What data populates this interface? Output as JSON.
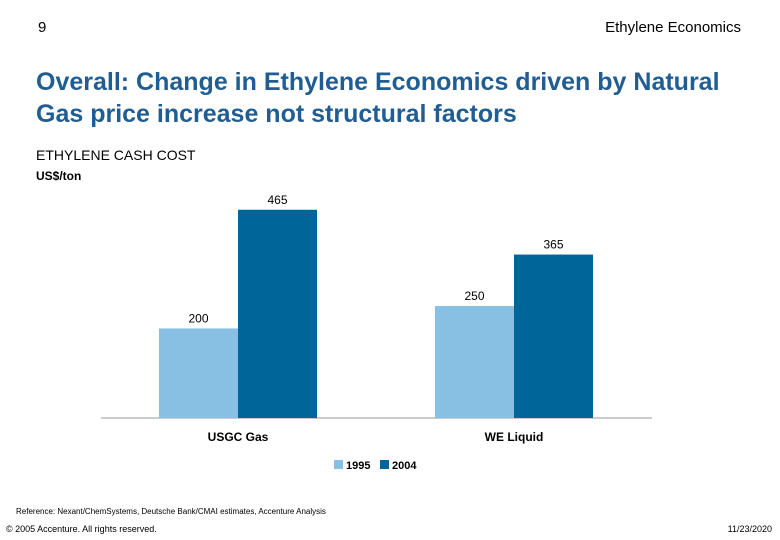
{
  "page_number": "9",
  "header_title": "Ethylene Economics",
  "main_title": "Overall: Change in Ethylene Economics driven by Natural Gas price increase not structural factors",
  "chart_data": {
    "type": "bar",
    "title": "ETHYLENE CASH COST",
    "ylabel": "US$/ton",
    "xlabel": "",
    "categories": [
      "USGC Gas",
      "WE Liquid"
    ],
    "series": [
      {
        "name": "1995",
        "values": [
          200,
          250
        ],
        "color": "#87c0e3"
      },
      {
        "name": "2004",
        "values": [
          465,
          365
        ],
        "color": "#006699"
      }
    ],
    "ylim": [
      0,
      500
    ],
    "grid": false,
    "legend": "bottom-center"
  },
  "footer": {
    "reference": "Reference: Nexant/ChemSystems, Deutsche Bank/CMAI estimates, Accenture Analysis",
    "copyright": "© 2005 Accenture. All rights reserved.",
    "date": "11/23/2020"
  }
}
